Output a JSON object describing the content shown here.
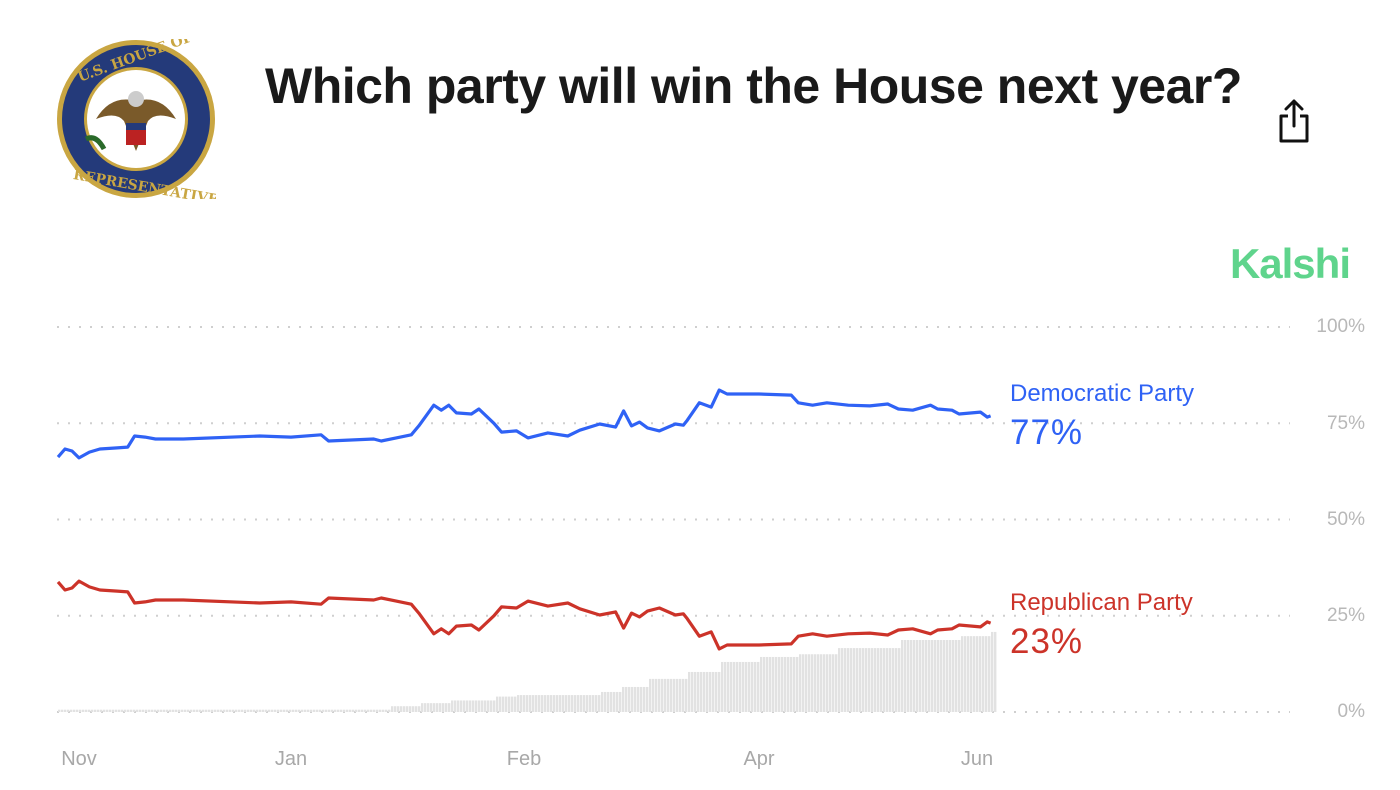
{
  "header": {
    "title": "Which party will win the House next year?",
    "logo_text": "U.S. HOUSE OF REPRESENTATIVES",
    "share_icon": "share-icon",
    "brand": "Kalshi"
  },
  "colors": {
    "democratic": "#2f62f5",
    "republican": "#cc3329",
    "volume": "#e2e2e2",
    "brand": "#5fd48c"
  },
  "chart_data": {
    "type": "line",
    "title": "",
    "xlabel": "",
    "ylabel": "",
    "ylim": [
      0,
      100
    ],
    "yticks": [
      "100%",
      "75%",
      "50%",
      "25%",
      "0%"
    ],
    "xticks": [
      "Nov",
      "Jan",
      "Feb",
      "Apr",
      "Jun"
    ],
    "grid": "horizontal dotted",
    "x": [
      "Oct 26",
      "Oct 28",
      "Oct 30",
      "Nov 1",
      "Nov 4",
      "Nov 7",
      "Nov 12",
      "Nov 15",
      "Nov 17",
      "Nov 20",
      "Nov 23",
      "Dec 1",
      "Dec 23",
      "Jan 1",
      "Jan 5",
      "Jan 6",
      "Jan 12",
      "Jan 13",
      "Jan 15",
      "Jan 17",
      "Jan 18",
      "Jan 20",
      "Jan 21",
      "Jan 22",
      "Jan 23",
      "Jan 25",
      "Jan 26",
      "Jan 28",
      "Jan 29",
      "Jan 31",
      "Feb 2",
      "Feb 7",
      "Feb 12",
      "Feb 15",
      "Feb 20",
      "Feb 24",
      "Feb 26",
      "Feb 28",
      "Mar 2",
      "Mar 4",
      "Mar 7",
      "Mar 11",
      "Mar 13",
      "Mar 14",
      "Mar 17",
      "Mar 20",
      "Mar 22",
      "Mar 24",
      "Apr 1",
      "Apr 10",
      "Apr 12",
      "Apr 16",
      "Apr 20",
      "Apr 26",
      "May 2",
      "May 7",
      "May 10",
      "May 14",
      "May 19",
      "May 21",
      "May 25",
      "May 27",
      "Jun 2",
      "Jun 4",
      "Jun 5"
    ],
    "series": [
      {
        "name": "Democratic Party",
        "current": "77%",
        "values": [
          66.2,
          68.3,
          67.8,
          66,
          67.5,
          68.3,
          68.6,
          68.8,
          71.7,
          71.4,
          70.9,
          70.9,
          71.7,
          71.4,
          72,
          70.4,
          70.9,
          70.4,
          71.2,
          72,
          74.3,
          79.7,
          78.4,
          79.7,
          77.7,
          77.4,
          78.7,
          75,
          72.7,
          73,
          71.2,
          72.5,
          71.7,
          73.2,
          74.8,
          74,
          78.2,
          74.3,
          75.3,
          73.8,
          73,
          74.8,
          74.5,
          75.8,
          80.3,
          79.2,
          83.6,
          82.6,
          82.6,
          82.3,
          80.3,
          79.7,
          80.3,
          79.7,
          79.5,
          80,
          78.7,
          78.4,
          79.7,
          78.7,
          78.4,
          77.4,
          77.9,
          76.6,
          76.9
        ]
      },
      {
        "name": "Republican Party",
        "current": "23%",
        "values": [
          33.8,
          31.7,
          32.2,
          34,
          32.5,
          31.7,
          31.4,
          31.2,
          28.3,
          28.6,
          29.1,
          29.1,
          28.3,
          28.6,
          28,
          29.6,
          29.1,
          29.6,
          28.8,
          28,
          25.7,
          20.3,
          21.6,
          20.3,
          22.3,
          22.6,
          21.3,
          25,
          27.3,
          27,
          28.8,
          27.5,
          28.3,
          26.8,
          25.2,
          26,
          21.8,
          25.7,
          24.7,
          26.2,
          27,
          25.2,
          25.5,
          24.2,
          19.7,
          20.8,
          16.4,
          17.4,
          17.4,
          17.7,
          19.7,
          20.3,
          19.7,
          20.3,
          20.5,
          20,
          21.3,
          21.6,
          20.3,
          21.3,
          21.6,
          22.6,
          22.1,
          23.4,
          23.1
        ]
      }
    ],
    "volume": {
      "x": [
        "Oct 26",
        "Jan 14",
        "Jan 18",
        "Jan 22",
        "Jan 28",
        "Jan 31",
        "Feb 20",
        "Feb 25",
        "Mar 4",
        "Mar 14",
        "Mar 22",
        "Apr 1",
        "Apr 12",
        "Apr 23",
        "May 10",
        "May 27",
        "Jun 5"
      ],
      "values": [
        0.6,
        1.5,
        2.3,
        3,
        4,
        4.4,
        5.2,
        6.5,
        8.6,
        10.4,
        13,
        14.3,
        15,
        16.6,
        18.7,
        19.7,
        20.8
      ]
    }
  }
}
